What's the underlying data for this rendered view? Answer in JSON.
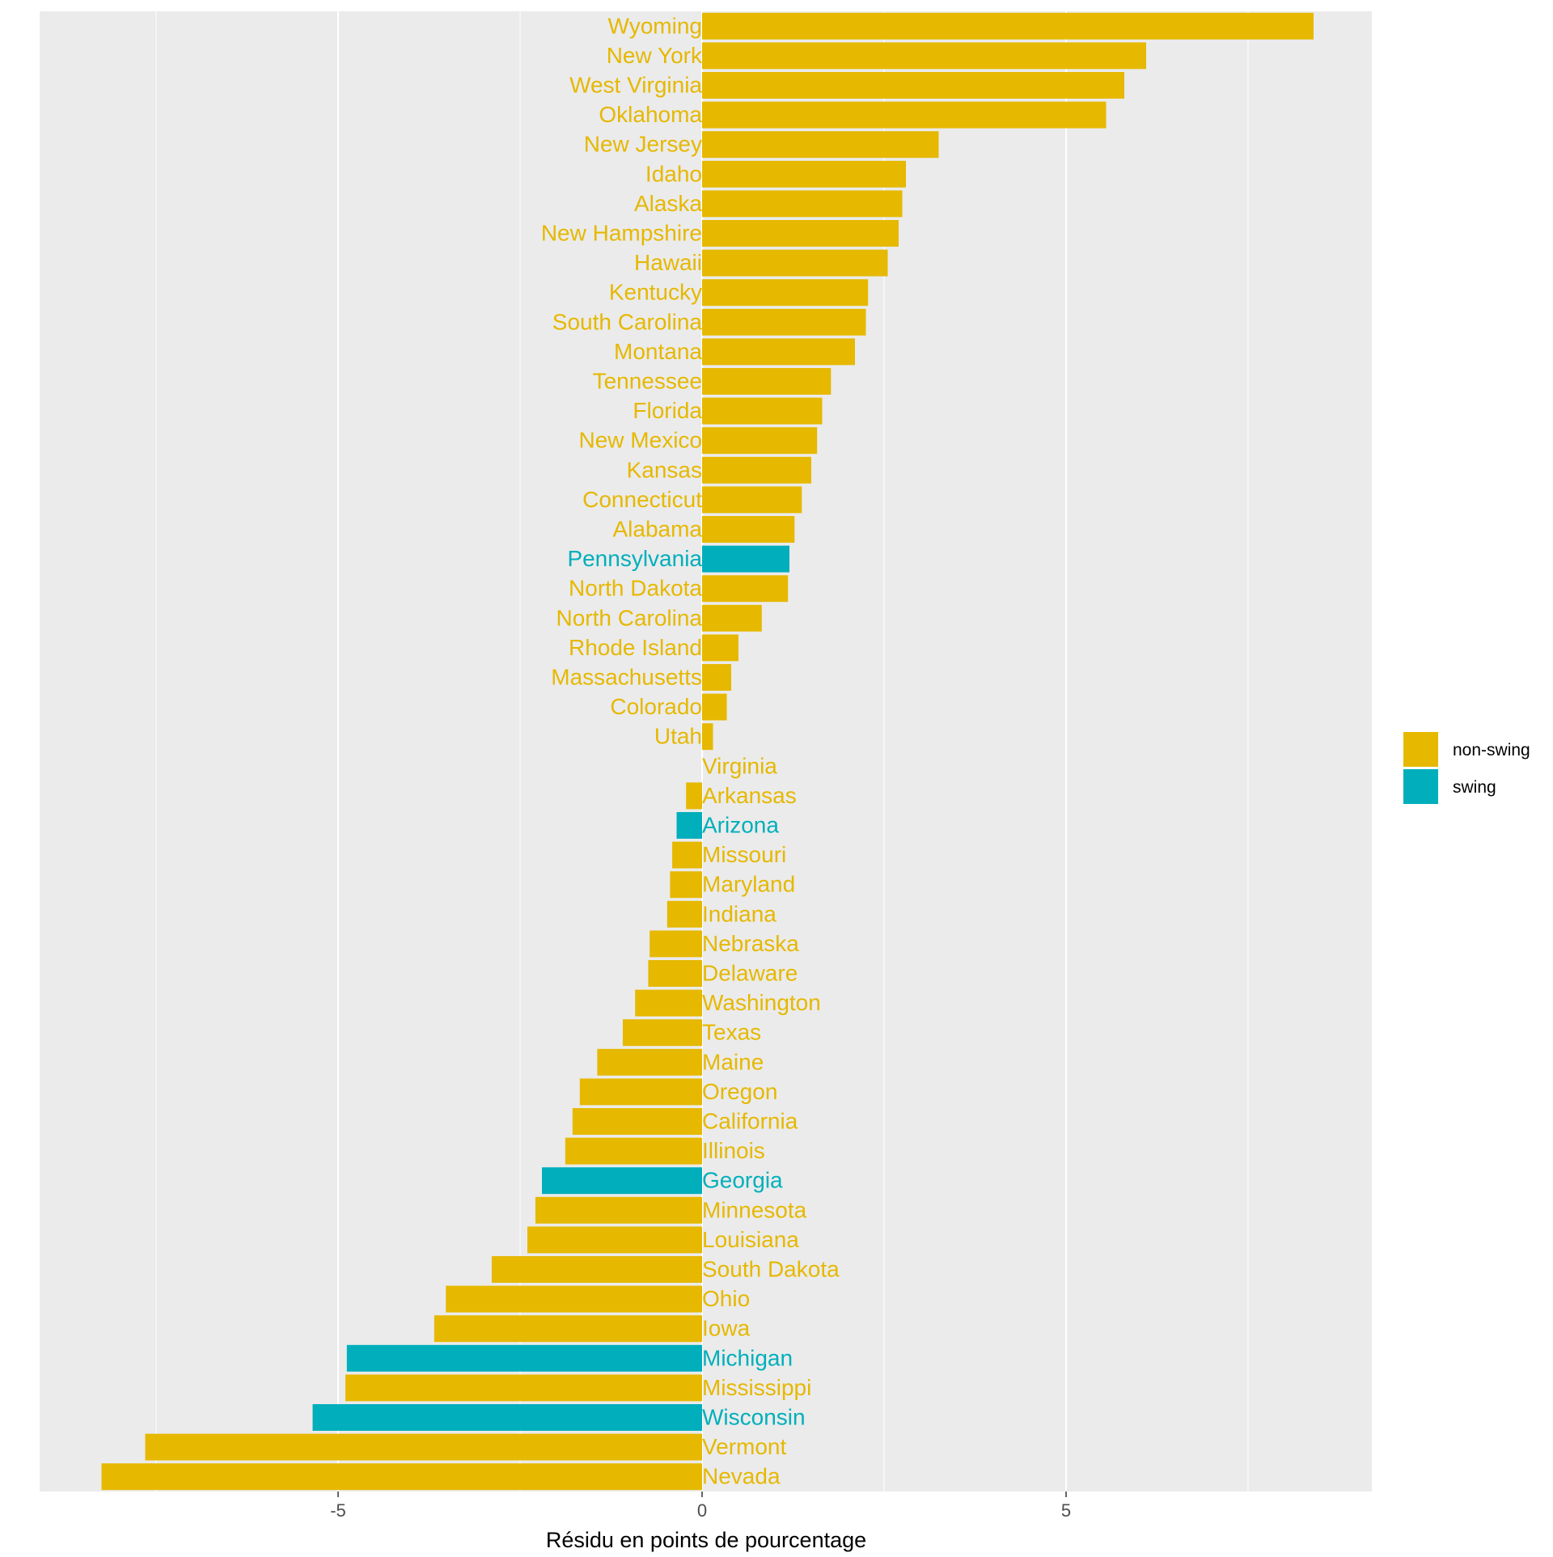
{
  "chart_data": {
    "type": "bar",
    "orientation": "horizontal",
    "title": "",
    "xlabel": "Résidu en points de pourcentage",
    "ylabel": "",
    "xlim": [
      -9.1,
      9.2
    ],
    "x_ticks": [
      -5,
      0,
      5
    ],
    "x_tick_labels": [
      "-5",
      "0",
      "5"
    ],
    "grid": true,
    "legend": {
      "position": "right",
      "entries": [
        {
          "name": "non-swing",
          "color": "#E6B800"
        },
        {
          "name": "swing",
          "color": "#00AFBB"
        }
      ]
    },
    "bars": [
      {
        "state": "Wyoming",
        "value": 8.4,
        "group": "non-swing"
      },
      {
        "state": "New York",
        "value": 6.1,
        "group": "non-swing"
      },
      {
        "state": "West Virginia",
        "value": 5.8,
        "group": "non-swing"
      },
      {
        "state": "Oklahoma",
        "value": 5.55,
        "group": "non-swing"
      },
      {
        "state": "New Jersey",
        "value": 3.25,
        "group": "non-swing"
      },
      {
        "state": "Idaho",
        "value": 2.8,
        "group": "non-swing"
      },
      {
        "state": "Alaska",
        "value": 2.75,
        "group": "non-swing"
      },
      {
        "state": "New Hampshire",
        "value": 2.7,
        "group": "non-swing"
      },
      {
        "state": "Hawaii",
        "value": 2.55,
        "group": "non-swing"
      },
      {
        "state": "Kentucky",
        "value": 2.28,
        "group": "non-swing"
      },
      {
        "state": "South Carolina",
        "value": 2.25,
        "group": "non-swing"
      },
      {
        "state": "Montana",
        "value": 2.1,
        "group": "non-swing"
      },
      {
        "state": "Tennessee",
        "value": 1.77,
        "group": "non-swing"
      },
      {
        "state": "Florida",
        "value": 1.65,
        "group": "non-swing"
      },
      {
        "state": "New Mexico",
        "value": 1.58,
        "group": "non-swing"
      },
      {
        "state": "Kansas",
        "value": 1.5,
        "group": "non-swing"
      },
      {
        "state": "Connecticut",
        "value": 1.37,
        "group": "non-swing"
      },
      {
        "state": "Alabama",
        "value": 1.27,
        "group": "non-swing"
      },
      {
        "state": "Pennsylvania",
        "value": 1.2,
        "group": "swing"
      },
      {
        "state": "North Dakota",
        "value": 1.18,
        "group": "non-swing"
      },
      {
        "state": "North Carolina",
        "value": 0.82,
        "group": "non-swing"
      },
      {
        "state": "Rhode Island",
        "value": 0.5,
        "group": "non-swing"
      },
      {
        "state": "Massachusetts",
        "value": 0.4,
        "group": "non-swing"
      },
      {
        "state": "Colorado",
        "value": 0.34,
        "group": "non-swing"
      },
      {
        "state": "Utah",
        "value": 0.15,
        "group": "non-swing"
      },
      {
        "state": "Virginia",
        "value": 0.0,
        "group": "non-swing"
      },
      {
        "state": "Arkansas",
        "value": -0.22,
        "group": "non-swing"
      },
      {
        "state": "Arizona",
        "value": -0.35,
        "group": "swing"
      },
      {
        "state": "Missouri",
        "value": -0.41,
        "group": "non-swing"
      },
      {
        "state": "Maryland",
        "value": -0.44,
        "group": "non-swing"
      },
      {
        "state": "Indiana",
        "value": -0.48,
        "group": "non-swing"
      },
      {
        "state": "Nebraska",
        "value": -0.72,
        "group": "non-swing"
      },
      {
        "state": "Delaware",
        "value": -0.74,
        "group": "non-swing"
      },
      {
        "state": "Washington",
        "value": -0.92,
        "group": "non-swing"
      },
      {
        "state": "Texas",
        "value": -1.09,
        "group": "non-swing"
      },
      {
        "state": "Maine",
        "value": -1.44,
        "group": "non-swing"
      },
      {
        "state": "Oregon",
        "value": -1.68,
        "group": "non-swing"
      },
      {
        "state": "California",
        "value": -1.78,
        "group": "non-swing"
      },
      {
        "state": "Illinois",
        "value": -1.88,
        "group": "non-swing"
      },
      {
        "state": "Georgia",
        "value": -2.2,
        "group": "swing"
      },
      {
        "state": "Minnesota",
        "value": -2.29,
        "group": "non-swing"
      },
      {
        "state": "Louisiana",
        "value": -2.4,
        "group": "non-swing"
      },
      {
        "state": "South Dakota",
        "value": -2.89,
        "group": "non-swing"
      },
      {
        "state": "Ohio",
        "value": -3.52,
        "group": "non-swing"
      },
      {
        "state": "Iowa",
        "value": -3.68,
        "group": "non-swing"
      },
      {
        "state": "Michigan",
        "value": -4.88,
        "group": "swing"
      },
      {
        "state": "Mississippi",
        "value": -4.9,
        "group": "non-swing"
      },
      {
        "state": "Wisconsin",
        "value": -5.35,
        "group": "swing"
      },
      {
        "state": "Vermont",
        "value": -7.65,
        "group": "non-swing"
      },
      {
        "state": "Nevada",
        "value": -8.25,
        "group": "non-swing"
      }
    ]
  }
}
